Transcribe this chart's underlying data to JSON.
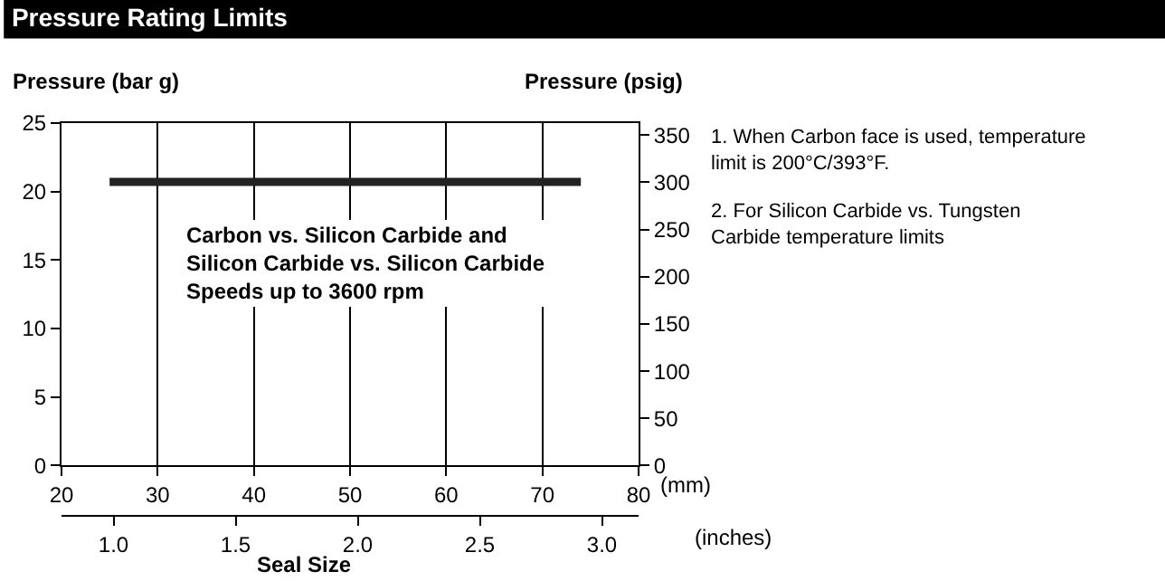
{
  "chart_data": {
    "type": "line",
    "title": "Pressure Rating Limits",
    "xlabel": "(mm)",
    "x2label": "(inches)",
    "ylabel": "Pressure (bar g)",
    "y2label": "Pressure (psig)",
    "x": [
      25,
      74
    ],
    "series": [
      {
        "color": "#222222",
        "values": [
          20.7,
          20.7
        ]
      }
    ],
    "xlim": [
      20,
      80
    ],
    "xticks": [
      20,
      30,
      40,
      50,
      60,
      70,
      80
    ],
    "x2lim": [
      0.787,
      3.15
    ],
    "x2ticks": [
      {
        "value": 1.0,
        "label": "1.0"
      },
      1.5,
      {
        "value": 2.0,
        "label": "2.0"
      },
      2.5,
      {
        "value": 3.0,
        "label": "3.0"
      }
    ],
    "ylim": [
      0,
      25
    ],
    "yticks": [
      0,
      5,
      10,
      15,
      20,
      25
    ],
    "y2lim": [
      0,
      362.6
    ],
    "y2ticks": [
      0,
      50,
      100,
      150,
      200,
      250,
      300,
      350
    ],
    "grid": "x",
    "marker": "none",
    "line_style": "solid",
    "annotations": [
      "Carbon vs. Silicon Carbide and Silicon Carbide vs. Silicon Carbide Speeds up to 3600 rpm",
      "Seal Size",
      "1. When Carbon face is used, temperature limit is 200°C/393°F.",
      "2. For Silicon Carbide vs. Tungsten Carbide temperature limits"
    ]
  }
}
